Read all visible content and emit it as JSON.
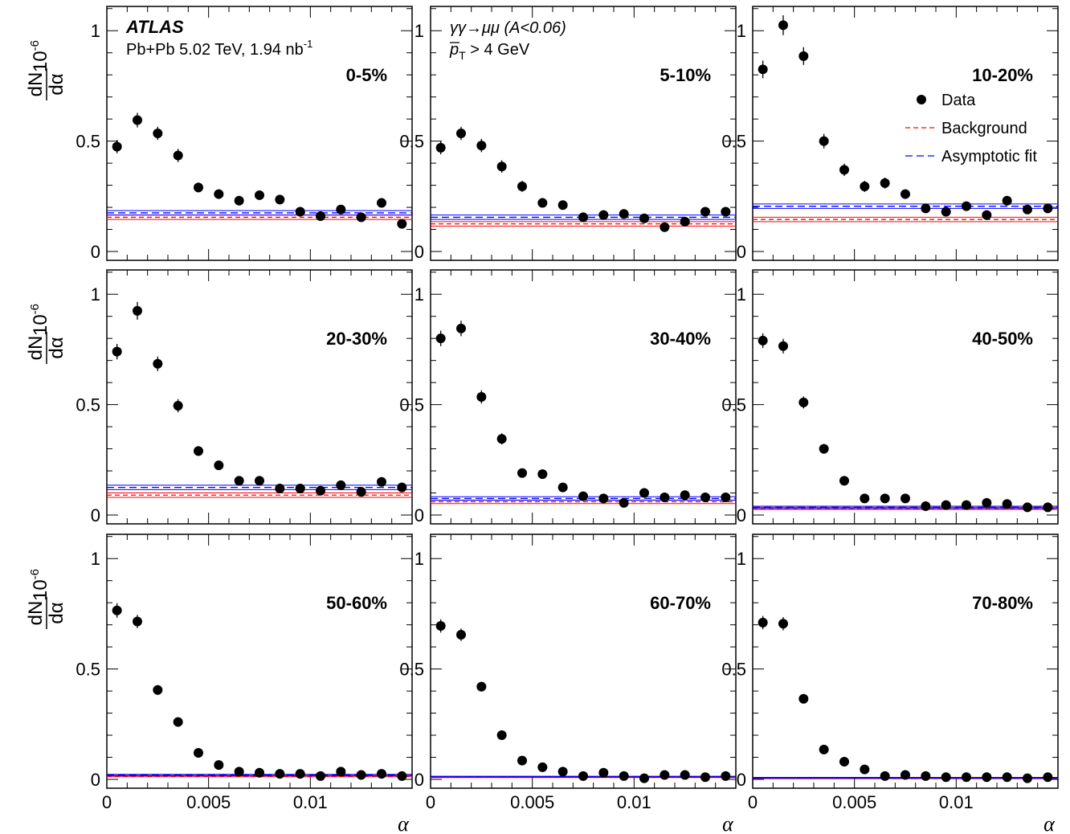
{
  "figure": {
    "atlas_label": "ATLAS",
    "dataset_text": "Pb+Pb 5.02 TeV, 1.94 nb",
    "dataset_sup": "-1",
    "selection_line1": "γγ→μμ (A<0.06)",
    "selection_line2_main": "p",
    "selection_line2_sub": "T",
    "selection_line2_rest": " > 4 GeV",
    "legend": [
      {
        "label": "Data",
        "style": "marker",
        "color": "#000000"
      },
      {
        "label": "Background",
        "style": "dashed",
        "color": "#ff0000"
      },
      {
        "label": "Asymptotic fit",
        "style": "dashed",
        "color": "#0000ff"
      }
    ],
    "y_axis_label": {
      "prefix": "10",
      "exponent": "-6",
      "numerator": "dN",
      "denominator": "dα"
    },
    "x_axis_label": "α"
  },
  "chart_data": [
    {
      "type": "scatter",
      "panel": "0-5%",
      "x": [
        0.0005,
        0.0015,
        0.0025,
        0.0035,
        0.0045,
        0.0055,
        0.0065,
        0.0075,
        0.0085,
        0.0095,
        0.0105,
        0.0115,
        0.0125,
        0.0135,
        0.0145
      ],
      "y": [
        0.475,
        0.595,
        0.535,
        0.435,
        0.29,
        0.26,
        0.23,
        0.255,
        0.235,
        0.18,
        0.16,
        0.19,
        0.155,
        0.22,
        0.125
      ],
      "yerr": [
        0.03,
        0.033,
        0.03,
        0.03,
        0.022,
        0.022,
        0.02,
        0.02,
        0.02,
        0.017,
        0.015,
        0.016,
        0.015,
        0.02,
        0.013
      ],
      "background": 0.155,
      "background_band": [
        0.145,
        0.165
      ],
      "asymptotic_fit": 0.175,
      "asymptotic_fit_band": [
        0.165,
        0.185
      ],
      "xlim": [
        0,
        0.015
      ],
      "ylim": [
        -0.04,
        1.11
      ],
      "x_ticks": [
        "0",
        "0.005",
        "0.01"
      ],
      "y_ticks": [
        "0",
        "0.5",
        "1"
      ]
    },
    {
      "type": "scatter",
      "panel": "5-10%",
      "x": [
        0.0005,
        0.0015,
        0.0025,
        0.0035,
        0.0045,
        0.0055,
        0.0065,
        0.0075,
        0.0085,
        0.0095,
        0.0105,
        0.0115,
        0.0125,
        0.0135,
        0.0145
      ],
      "y": [
        0.47,
        0.535,
        0.48,
        0.385,
        0.295,
        0.22,
        0.21,
        0.155,
        0.165,
        0.17,
        0.15,
        0.11,
        0.135,
        0.18,
        0.18
      ],
      "yerr": [
        0.03,
        0.03,
        0.03,
        0.028,
        0.025,
        0.02,
        0.02,
        0.016,
        0.016,
        0.016,
        0.015,
        0.013,
        0.014,
        0.016,
        0.016
      ],
      "background": 0.125,
      "background_band": [
        0.115,
        0.135
      ],
      "asymptotic_fit": 0.155,
      "asymptotic_fit_band": [
        0.145,
        0.165
      ],
      "xlim": [
        0,
        0.015
      ],
      "ylim": [
        -0.04,
        1.11
      ],
      "x_ticks": [
        "0",
        "0.005",
        "0.01"
      ],
      "y_ticks": [
        "0",
        "0.5",
        "1"
      ]
    },
    {
      "type": "scatter",
      "panel": "10-20%",
      "x": [
        0.0005,
        0.0015,
        0.0025,
        0.0035,
        0.0045,
        0.0055,
        0.0065,
        0.0075,
        0.0085,
        0.0095,
        0.0105,
        0.0115,
        0.0125,
        0.0135,
        0.0145
      ],
      "y": [
        0.825,
        1.025,
        0.885,
        0.5,
        0.37,
        0.295,
        0.31,
        0.26,
        0.195,
        0.18,
        0.205,
        0.165,
        0.23,
        0.19,
        0.195
      ],
      "yerr": [
        0.04,
        0.045,
        0.04,
        0.033,
        0.028,
        0.025,
        0.025,
        0.022,
        0.018,
        0.017,
        0.018,
        0.016,
        0.02,
        0.017,
        0.017
      ],
      "background": 0.145,
      "background_band": [
        0.135,
        0.155
      ],
      "asymptotic_fit": 0.205,
      "asymptotic_fit_band": [
        0.195,
        0.215
      ],
      "xlim": [
        0,
        0.015
      ],
      "ylim": [
        -0.04,
        1.11
      ],
      "x_ticks": [
        "0",
        "0.005",
        "0.01"
      ],
      "y_ticks": [
        "0",
        "0.5",
        "1"
      ]
    },
    {
      "type": "scatter",
      "panel": "20-30%",
      "x": [
        0.0005,
        0.0015,
        0.0025,
        0.0035,
        0.0045,
        0.0055,
        0.0065,
        0.0075,
        0.0085,
        0.0095,
        0.0105,
        0.0115,
        0.0125,
        0.0135,
        0.0145
      ],
      "y": [
        0.74,
        0.925,
        0.685,
        0.495,
        0.29,
        0.225,
        0.155,
        0.155,
        0.12,
        0.12,
        0.11,
        0.135,
        0.105,
        0.15,
        0.125
      ],
      "yerr": [
        0.035,
        0.04,
        0.033,
        0.03,
        0.022,
        0.02,
        0.016,
        0.016,
        0.014,
        0.014,
        0.013,
        0.014,
        0.013,
        0.015,
        0.014
      ],
      "background": 0.09,
      "background_band": [
        0.08,
        0.1
      ],
      "asymptotic_fit": 0.125,
      "asymptotic_fit_band": [
        0.115,
        0.135
      ],
      "xlim": [
        0,
        0.015
      ],
      "ylim": [
        -0.04,
        1.11
      ],
      "x_ticks": [
        "0",
        "0.005",
        "0.01"
      ],
      "y_ticks": [
        "0",
        "0.5",
        "1"
      ]
    },
    {
      "type": "scatter",
      "panel": "30-40%",
      "x": [
        0.0005,
        0.0015,
        0.0025,
        0.0035,
        0.0045,
        0.0055,
        0.0065,
        0.0075,
        0.0085,
        0.0095,
        0.0105,
        0.0115,
        0.0125,
        0.0135,
        0.0145
      ],
      "y": [
        0.8,
        0.845,
        0.535,
        0.345,
        0.19,
        0.185,
        0.125,
        0.085,
        0.075,
        0.055,
        0.1,
        0.08,
        0.09,
        0.08,
        0.08
      ],
      "yerr": [
        0.035,
        0.035,
        0.03,
        0.025,
        0.018,
        0.018,
        0.014,
        0.012,
        0.011,
        0.01,
        0.013,
        0.011,
        0.012,
        0.011,
        0.011
      ],
      "background": 0.06,
      "background_band": [
        0.052,
        0.068
      ],
      "asymptotic_fit": 0.075,
      "asymptotic_fit_band": [
        0.067,
        0.083
      ],
      "xlim": [
        0,
        0.015
      ],
      "ylim": [
        -0.04,
        1.11
      ],
      "x_ticks": [
        "0",
        "0.005",
        "0.01"
      ],
      "y_ticks": [
        "0",
        "0.5",
        "1"
      ]
    },
    {
      "type": "scatter",
      "panel": "40-50%",
      "x": [
        0.0005,
        0.0015,
        0.0025,
        0.0035,
        0.0045,
        0.0055,
        0.0065,
        0.0075,
        0.0085,
        0.0095,
        0.0105,
        0.0115,
        0.0125,
        0.0135,
        0.0145
      ],
      "y": [
        0.79,
        0.765,
        0.51,
        0.3,
        0.155,
        0.075,
        0.075,
        0.075,
        0.04,
        0.045,
        0.045,
        0.055,
        0.05,
        0.035,
        0.035
      ],
      "yerr": [
        0.033,
        0.033,
        0.027,
        0.022,
        0.015,
        0.01,
        0.01,
        0.01,
        0.008,
        0.008,
        0.008,
        0.009,
        0.008,
        0.007,
        0.007
      ],
      "background": 0.03,
      "background_band": [
        0.025,
        0.035
      ],
      "asymptotic_fit": 0.035,
      "asymptotic_fit_band": [
        0.03,
        0.04
      ],
      "xlim": [
        0,
        0.015
      ],
      "ylim": [
        -0.04,
        1.11
      ],
      "x_ticks": [
        "0",
        "0.005",
        "0.01"
      ],
      "y_ticks": [
        "0",
        "0.5",
        "1"
      ]
    },
    {
      "type": "scatter",
      "panel": "50-60%",
      "x": [
        0.0005,
        0.0015,
        0.0025,
        0.0035,
        0.0045,
        0.0055,
        0.0065,
        0.0075,
        0.0085,
        0.0095,
        0.0105,
        0.0115,
        0.0125,
        0.0135,
        0.0145
      ],
      "y": [
        0.765,
        0.715,
        0.405,
        0.26,
        0.12,
        0.065,
        0.035,
        0.03,
        0.025,
        0.025,
        0.015,
        0.035,
        0.02,
        0.025,
        0.015
      ],
      "yerr": [
        0.033,
        0.03,
        0.022,
        0.018,
        0.012,
        0.009,
        0.007,
        0.006,
        0.006,
        0.006,
        0.005,
        0.007,
        0.005,
        0.006,
        0.005
      ],
      "background": 0.015,
      "background_band": [
        0.012,
        0.018
      ],
      "asymptotic_fit": 0.02,
      "asymptotic_fit_band": [
        0.017,
        0.023
      ],
      "xlim": [
        0,
        0.015
      ],
      "ylim": [
        -0.04,
        1.11
      ],
      "x_ticks": [
        "0",
        "0.005",
        "0.01"
      ],
      "y_ticks": [
        "0",
        "0.5",
        "1"
      ]
    },
    {
      "type": "scatter",
      "panel": "60-70%",
      "x": [
        0.0005,
        0.0015,
        0.0025,
        0.0035,
        0.0045,
        0.0055,
        0.0065,
        0.0075,
        0.0085,
        0.0095,
        0.0105,
        0.0115,
        0.0125,
        0.0135,
        0.0145
      ],
      "y": [
        0.695,
        0.655,
        0.42,
        0.2,
        0.085,
        0.055,
        0.035,
        0.015,
        0.03,
        0.015,
        0.005,
        0.02,
        0.02,
        0.01,
        0.015
      ],
      "yerr": [
        0.03,
        0.028,
        0.022,
        0.015,
        0.01,
        0.008,
        0.007,
        0.005,
        0.006,
        0.005,
        0.003,
        0.005,
        0.005,
        0.004,
        0.005
      ],
      "background": 0.01,
      "background_band": [
        0.008,
        0.012
      ],
      "asymptotic_fit": 0.012,
      "asymptotic_fit_band": [
        0.01,
        0.014
      ],
      "xlim": [
        0,
        0.015
      ],
      "ylim": [
        -0.04,
        1.11
      ],
      "x_ticks": [
        "0",
        "0.005",
        "0.01"
      ],
      "y_ticks": [
        "0",
        "0.5",
        "1"
      ]
    },
    {
      "type": "scatter",
      "panel": "70-80%",
      "x": [
        0.0005,
        0.0015,
        0.0025,
        0.0035,
        0.0045,
        0.0055,
        0.0065,
        0.0075,
        0.0085,
        0.0095,
        0.0105,
        0.0115,
        0.0125,
        0.0135,
        0.0145
      ],
      "y": [
        0.71,
        0.705,
        0.365,
        0.135,
        0.08,
        0.045,
        0.015,
        0.02,
        0.015,
        0.01,
        0.01,
        0.01,
        0.01,
        0.005,
        0.01
      ],
      "yerr": [
        0.03,
        0.03,
        0.02,
        0.012,
        0.01,
        0.008,
        0.005,
        0.005,
        0.005,
        0.004,
        0.004,
        0.004,
        0.004,
        0.003,
        0.004
      ],
      "background": 0.005,
      "background_band": [
        0.003,
        0.007
      ],
      "asymptotic_fit": 0.007,
      "asymptotic_fit_band": [
        0.005,
        0.009
      ],
      "xlim": [
        0,
        0.015
      ],
      "ylim": [
        -0.04,
        1.11
      ],
      "x_ticks": [
        "0",
        "0.005",
        "0.01"
      ],
      "y_ticks": [
        "0",
        "0.5",
        "1"
      ]
    }
  ]
}
